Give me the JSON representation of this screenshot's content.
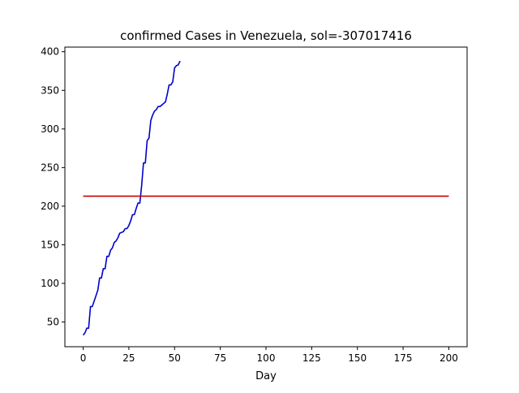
{
  "chart_data": {
    "type": "line",
    "title": "confirmed Cases in Venezuela, sol=-307017416",
    "xlabel": "Day",
    "ylabel": "",
    "xlim": [
      -10,
      210
    ],
    "ylim": [
      18,
      406
    ],
    "xticks": [
      0,
      25,
      50,
      75,
      100,
      125,
      150,
      175,
      200
    ],
    "yticks": [
      50,
      100,
      150,
      200,
      250,
      300,
      350,
      400
    ],
    "grid": false,
    "series": [
      {
        "color": "#0000cc",
        "x": [
          0,
          1,
          2,
          3,
          4,
          5,
          6,
          7,
          8,
          9,
          10,
          11,
          12,
          13,
          14,
          15,
          16,
          17,
          18,
          19,
          20,
          21,
          22,
          23,
          24,
          25,
          26,
          27,
          28,
          29,
          30,
          31,
          32,
          33,
          34,
          35,
          36,
          37,
          38,
          39,
          40,
          41,
          42,
          43,
          44,
          45,
          46,
          47,
          48,
          49,
          50,
          51,
          52,
          53
        ],
        "y": [
          33,
          36,
          42,
          42,
          70,
          70,
          77,
          84,
          91,
          107,
          107,
          119,
          119,
          135,
          135,
          143,
          146,
          153,
          155,
          159,
          165,
          166,
          167,
          171,
          171,
          175,
          181,
          189,
          189,
          197,
          204,
          204,
          227,
          256,
          256,
          285,
          288,
          311,
          318,
          323,
          325,
          329,
          329,
          331,
          333,
          335,
          345,
          357,
          357,
          361,
          379,
          382,
          383,
          388
        ]
      },
      {
        "color": "#cc0000",
        "x": [
          0,
          200
        ],
        "y": [
          213,
          213
        ]
      }
    ]
  }
}
